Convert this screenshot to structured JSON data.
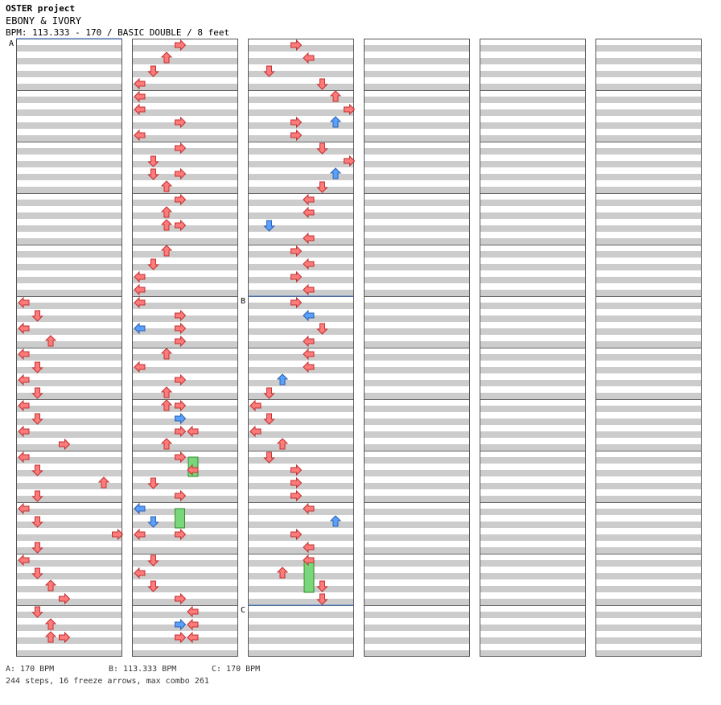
{
  "header": {
    "project": "OSTER project",
    "song": "EBONY & IVORY",
    "info": "BPM: 113.333 - 170 / BASIC DOUBLE / 8 feet"
  },
  "footer": {
    "bpms": [
      {
        "label": "A: 170 BPM"
      },
      {
        "label": "B: 113.333 BPM"
      },
      {
        "label": "C: 170 BPM"
      }
    ],
    "stats": "244 steps, 16 freeze arrows, max combo 261"
  },
  "chart_data": {
    "type": "step-chart",
    "columns": 6,
    "measures_per_column": 12,
    "lanes": [
      "L1",
      "D1",
      "U1",
      "R1",
      "L2",
      "D2",
      "U2",
      "R2"
    ],
    "colors": {
      "quarter": "#ff7a7a",
      "eighth": "#5aa0ff",
      "freeze": "#7ad67a"
    },
    "bpm_markers": [
      {
        "label": "A",
        "measure": 0,
        "beat": 0
      },
      {
        "label": "B",
        "measure": 29,
        "beat": 0
      },
      {
        "label": "C",
        "measure": 35,
        "beat": 0
      }
    ],
    "notes": [
      [
        5,
        0,
        0,
        "q"
      ],
      [
        5,
        1,
        1,
        "q"
      ],
      [
        5,
        2,
        0,
        "q"
      ],
      [
        5,
        3,
        2,
        "q"
      ],
      [
        6,
        0,
        0,
        "q"
      ],
      [
        6,
        1,
        1,
        "q"
      ],
      [
        6,
        2,
        0,
        "q"
      ],
      [
        6,
        3,
        1,
        "q"
      ],
      [
        7,
        0,
        0,
        "q"
      ],
      [
        7,
        1,
        1,
        "q"
      ],
      [
        7,
        2,
        0,
        "q"
      ],
      [
        7,
        3,
        3,
        "q"
      ],
      [
        8,
        0,
        0,
        "q"
      ],
      [
        8,
        1,
        1,
        "q"
      ],
      [
        8,
        2,
        6,
        "q"
      ],
      [
        8,
        3,
        1,
        "q"
      ],
      [
        9,
        0,
        0,
        "q"
      ],
      [
        9,
        1,
        1,
        "q"
      ],
      [
        9,
        2,
        7,
        "q"
      ],
      [
        9,
        3,
        1,
        "q"
      ],
      [
        10,
        0,
        0,
        "q"
      ],
      [
        10,
        1,
        1,
        "q"
      ],
      [
        10,
        2,
        2,
        "q"
      ],
      [
        10,
        3,
        3,
        "q"
      ],
      [
        11,
        0,
        1,
        "q"
      ],
      [
        11,
        1,
        2,
        "q"
      ],
      [
        11,
        2,
        2,
        "q"
      ],
      [
        11,
        2,
        3,
        "q"
      ],
      [
        12,
        0,
        3,
        "q"
      ],
      [
        12,
        1,
        2,
        "q"
      ],
      [
        12,
        2,
        1,
        "q"
      ],
      [
        12,
        3,
        0,
        "q"
      ],
      [
        13,
        0,
        0,
        "q"
      ],
      [
        13,
        1,
        0,
        "q"
      ],
      [
        13,
        2,
        3,
        "q"
      ],
      [
        13,
        3,
        0,
        "q"
      ],
      [
        14,
        0,
        3,
        "q"
      ],
      [
        14,
        1,
        1,
        "q"
      ],
      [
        14,
        2,
        3,
        "q"
      ],
      [
        14,
        2,
        1,
        "q"
      ],
      [
        14,
        3,
        2,
        "q"
      ],
      [
        15,
        0,
        3,
        "q"
      ],
      [
        15,
        1,
        2,
        "q"
      ],
      [
        15,
        2,
        2,
        "q"
      ],
      [
        15,
        2,
        3,
        "q"
      ],
      [
        16,
        0,
        2,
        "q"
      ],
      [
        16,
        1,
        1,
        "q"
      ],
      [
        16,
        2,
        0,
        "q"
      ],
      [
        16,
        3,
        0,
        "q"
      ],
      [
        17,
        0,
        0,
        "q"
      ],
      [
        17,
        1,
        3,
        "q"
      ],
      [
        17,
        2,
        0,
        "e"
      ],
      [
        17,
        2,
        3,
        "q"
      ],
      [
        17,
        3,
        3,
        "q"
      ],
      [
        18,
        0,
        2,
        "q"
      ],
      [
        18,
        1,
        0,
        "q"
      ],
      [
        18,
        2,
        3,
        "q"
      ],
      [
        18,
        3,
        2,
        "q"
      ],
      [
        19,
        0,
        3,
        "q"
      ],
      [
        19,
        0,
        2,
        "q"
      ],
      [
        19,
        1,
        3,
        "e"
      ],
      [
        19,
        2,
        3,
        "q"
      ],
      [
        19,
        2,
        4,
        "q"
      ],
      [
        19,
        3,
        2,
        "q"
      ],
      [
        20,
        0,
        3,
        "q"
      ],
      [
        20,
        1,
        4,
        "q"
      ],
      [
        20,
        2,
        1,
        "q"
      ],
      [
        20,
        3,
        3,
        "q"
      ],
      [
        21,
        0,
        0,
        "q"
      ],
      [
        21,
        0,
        0,
        "e"
      ],
      [
        21,
        1,
        1,
        "e"
      ],
      [
        21,
        2,
        0,
        "q"
      ],
      [
        21,
        2,
        3,
        "q"
      ],
      [
        22,
        0,
        1,
        "q"
      ],
      [
        22,
        1,
        0,
        "q"
      ],
      [
        22,
        2,
        1,
        "q"
      ],
      [
        22,
        3,
        3,
        "q"
      ],
      [
        23,
        0,
        4,
        "q"
      ],
      [
        23,
        1,
        4,
        "q"
      ],
      [
        23,
        1,
        3,
        "e"
      ],
      [
        23,
        2,
        3,
        "q"
      ],
      [
        23,
        2,
        4,
        "q"
      ],
      [
        24,
        0,
        3,
        "q"
      ],
      [
        24,
        1,
        4,
        "q"
      ],
      [
        24,
        2,
        1,
        "q"
      ],
      [
        24,
        3,
        5,
        "q"
      ],
      [
        25,
        0,
        6,
        "q"
      ],
      [
        25,
        1,
        7,
        "q"
      ],
      [
        25,
        2,
        3,
        "q"
      ],
      [
        25,
        2,
        6,
        "e"
      ],
      [
        25,
        3,
        3,
        "q"
      ],
      [
        26,
        0,
        5,
        "q"
      ],
      [
        26,
        1,
        7,
        "q"
      ],
      [
        26,
        2,
        6,
        "e"
      ],
      [
        26,
        3,
        5,
        "q"
      ],
      [
        27,
        0,
        4,
        "q"
      ],
      [
        27,
        1,
        4,
        "q"
      ],
      [
        27,
        2,
        1,
        "e"
      ],
      [
        27,
        3,
        4,
        "q"
      ],
      [
        28,
        0,
        3,
        "q"
      ],
      [
        28,
        1,
        4,
        "q"
      ],
      [
        28,
        2,
        3,
        "q"
      ],
      [
        28,
        3,
        4,
        "q"
      ],
      [
        29,
        0,
        3,
        "q"
      ],
      [
        29,
        1,
        4,
        "e"
      ],
      [
        29,
        2,
        5,
        "q"
      ],
      [
        29,
        3,
        4,
        "q"
      ],
      [
        30,
        0,
        4,
        "q"
      ],
      [
        30,
        1,
        4,
        "q"
      ],
      [
        30,
        2,
        2,
        "e"
      ],
      [
        30,
        3,
        1,
        "q"
      ],
      [
        31,
        0,
        0,
        "q"
      ],
      [
        31,
        1,
        1,
        "q"
      ],
      [
        31,
        2,
        0,
        "q"
      ],
      [
        31,
        3,
        2,
        "q"
      ],
      [
        32,
        0,
        1,
        "q"
      ],
      [
        32,
        1,
        3,
        "q"
      ],
      [
        32,
        2,
        3,
        "q"
      ],
      [
        32,
        3,
        3,
        "q"
      ],
      [
        33,
        0,
        4,
        "q"
      ],
      [
        33,
        1,
        6,
        "e"
      ],
      [
        33,
        2,
        3,
        "q"
      ],
      [
        33,
        3,
        4,
        "q"
      ],
      [
        34,
        0,
        4,
        "q"
      ],
      [
        34,
        1,
        2,
        "q"
      ],
      [
        34,
        2,
        5,
        "q"
      ],
      [
        34,
        3,
        5,
        "q"
      ]
    ],
    "freezes": [
      [
        20,
        0,
        4,
        1,
        "f"
      ],
      [
        21,
        0,
        3,
        1,
        "f"
      ],
      [
        34,
        0,
        4,
        2,
        "f"
      ]
    ]
  }
}
